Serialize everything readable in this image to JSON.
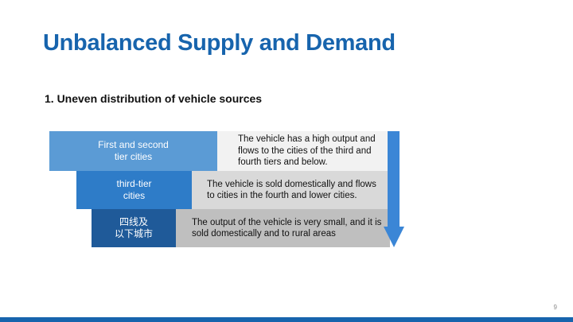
{
  "slide": {
    "title": "Unbalanced Supply and Demand",
    "subtitle": "1.  Uneven distribution of vehicle sources",
    "page_number": "9"
  },
  "tiers": [
    {
      "label_line1": "First and second",
      "label_line2": "tier cities",
      "description": "The vehicle has a high output and flows to the cities of the third and fourth tiers and below.",
      "label_color": "#5b9bd5",
      "description_bg": "#f2f2f2"
    },
    {
      "label_line1": "third-tier",
      "label_line2": "cities",
      "description": "The vehicle is sold domestically and flows to cities in the fourth and lower cities.",
      "label_color": "#2e7cc8",
      "description_bg": "#d9d9d9"
    },
    {
      "label_line1": "四线及",
      "label_line2": "以下城市",
      "description": "The output of the vehicle is very small, and it is sold domestically and to rural areas",
      "label_color": "#1f5a99",
      "description_bg": "#bfbfbf"
    }
  ],
  "colors": {
    "title": "#1764ad",
    "arrow": "#3b86d6",
    "footer_bar": "#1764ad"
  },
  "icons": {
    "arrow": "down-arrow-icon"
  }
}
